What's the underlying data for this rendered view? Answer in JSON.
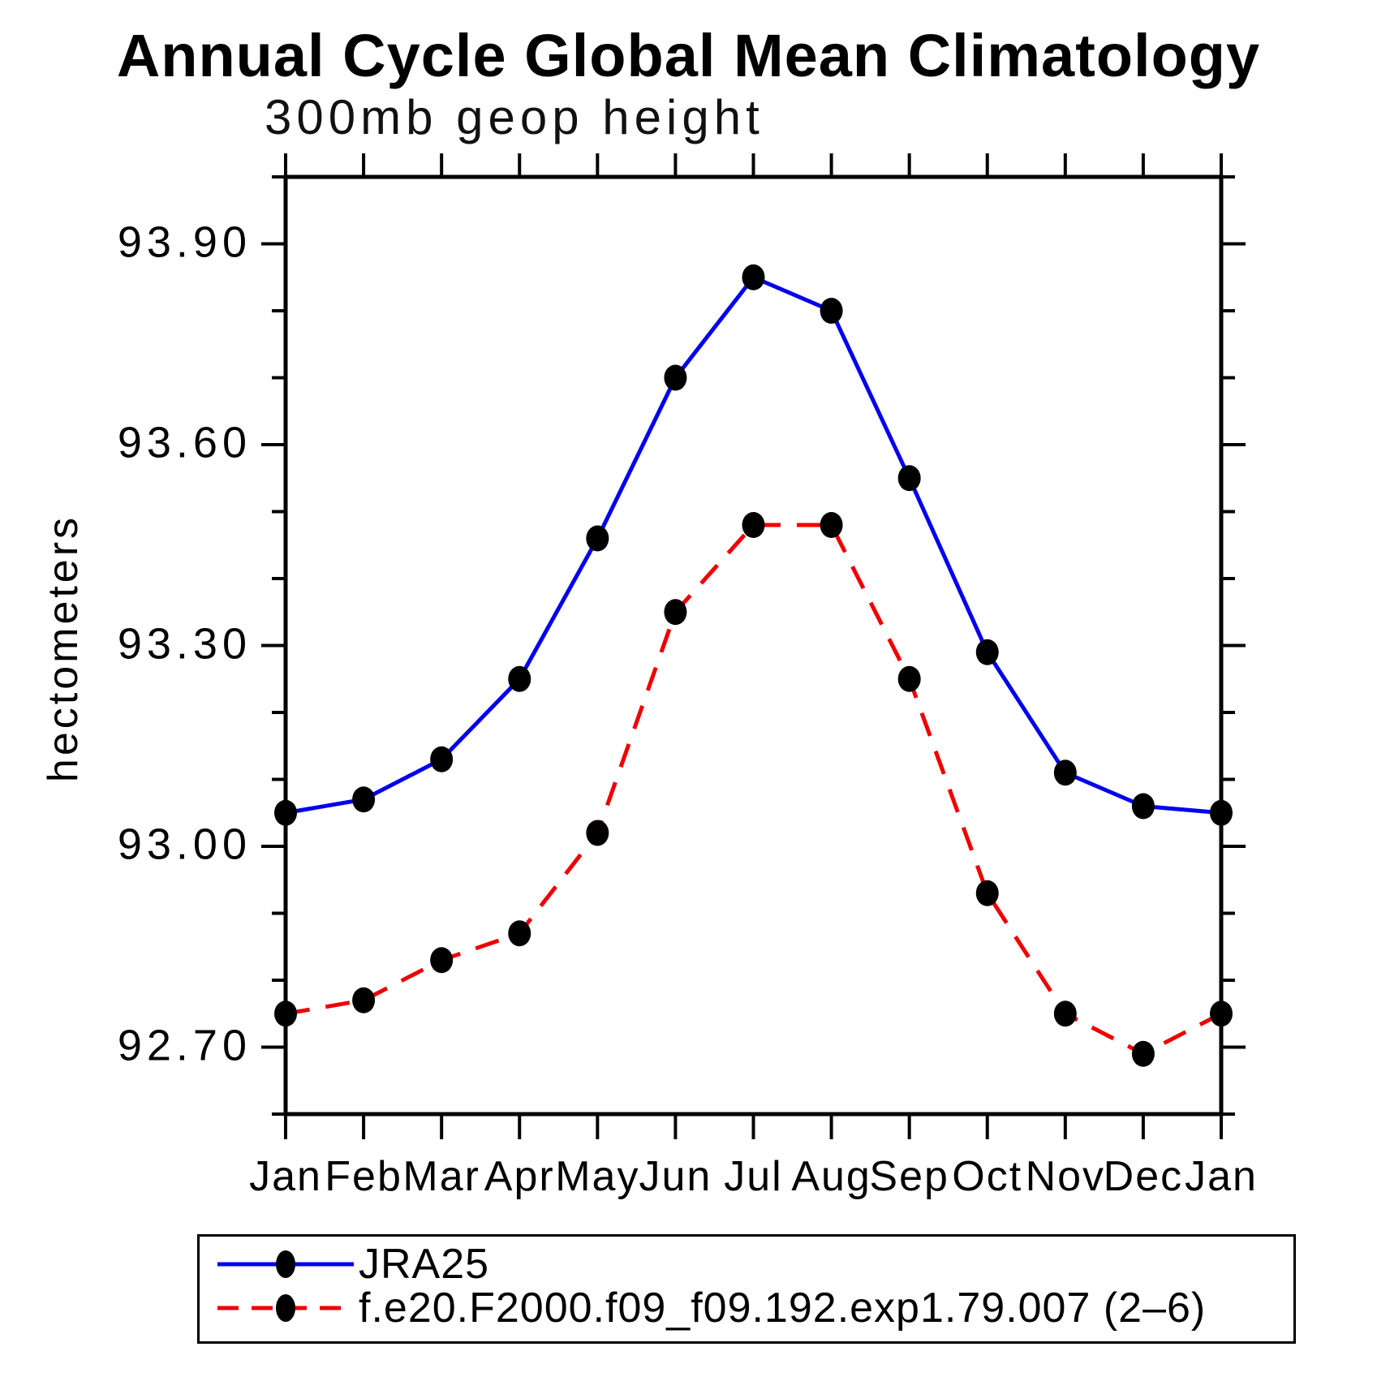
{
  "title": "Annual Cycle Global Mean Climatology",
  "subtitle": "300mb geop height",
  "ylabel": "hectometers",
  "colors": {
    "series1": "#0000ee",
    "series2": "#ee0000",
    "marker": "#000000",
    "axis": "#000000"
  },
  "legend": {
    "items": [
      {
        "label": "JRA25",
        "color": "#0000ee",
        "style": "solid"
      },
      {
        "label": "f.e20.F2000.f09_f09.192.exp1.79.007 (2–6)",
        "color": "#ee0000",
        "style": "dashed"
      }
    ]
  },
  "chart_data": {
    "type": "line",
    "categories": [
      "Jan",
      "Feb",
      "Mar",
      "Apr",
      "May",
      "Jun",
      "Jul",
      "Aug",
      "Sep",
      "Oct",
      "Nov",
      "Dec",
      "Jan"
    ],
    "series": [
      {
        "name": "JRA25",
        "color": "#0000ee",
        "style": "solid",
        "values": [
          93.05,
          93.07,
          93.13,
          93.25,
          93.46,
          93.7,
          93.85,
          93.8,
          93.55,
          93.29,
          93.11,
          93.06,
          93.05
        ]
      },
      {
        "name": "f.e20.F2000.f09_f09.192.exp1.79.007 (2–6)",
        "color": "#ee0000",
        "style": "dashed",
        "values": [
          92.75,
          92.77,
          92.83,
          92.87,
          93.02,
          93.35,
          93.48,
          93.48,
          93.25,
          92.93,
          92.75,
          92.69,
          92.75
        ]
      }
    ],
    "title": "Annual Cycle Global Mean Climatology",
    "subtitle": "300mb geop height",
    "xlabel": "",
    "ylabel": "hectometers",
    "ylim": [
      92.6,
      94.0
    ],
    "ytick_major_values": [
      92.7,
      93.0,
      93.3,
      93.6,
      93.9
    ],
    "ytick_labels": [
      "92.70",
      "93.00",
      "93.30",
      "93.60",
      "93.90"
    ],
    "ytick_minor_step": 0.1,
    "grid": false,
    "marker": "filled-circle",
    "legend_position": "bottom"
  }
}
